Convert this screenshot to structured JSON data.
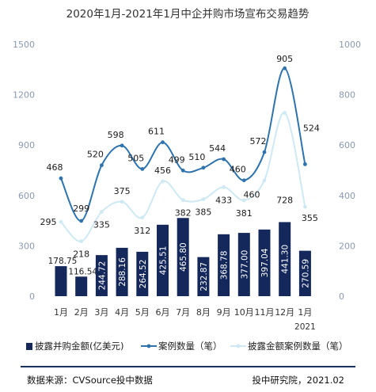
{
  "chart_data": {
    "type": "bar+line",
    "title": "2020年1月-2021年1月中企并购市场宣布交易趋势",
    "categories": [
      "1月",
      "2月",
      "3月",
      "4月",
      "5月",
      "6月",
      "7月",
      "8月",
      "9月",
      "10月",
      "11月",
      "12月",
      "1月"
    ],
    "x_sublabel": "2021",
    "ylim_left": [
      0,
      1500
    ],
    "yticks_left": [
      0,
      300,
      600,
      900,
      1200,
      1500
    ],
    "ylim_right": [
      0,
      1000
    ],
    "yticks_right": [
      0,
      200,
      400,
      600,
      800,
      1000
    ],
    "series": [
      {
        "name": "披露并购金额(亿美元)",
        "kind": "bar",
        "axis": "left",
        "color": "#14285c",
        "values": [
          178.75,
          116.54,
          244.72,
          288.16,
          264.52,
          425.51,
          465.8,
          232.87,
          368.78,
          377.0,
          397.04,
          441.3,
          270.59
        ]
      },
      {
        "name": "案例数量（笔）",
        "kind": "line",
        "axis": "right",
        "color": "#2e73ad",
        "values": [
          468,
          299,
          520,
          598,
          505,
          611,
          499,
          510,
          544,
          460,
          572,
          905,
          524
        ]
      },
      {
        "name": "披露金额案例数量（笔）",
        "kind": "line",
        "axis": "right",
        "color": "#cfe9f4",
        "values": [
          295,
          218,
          335,
          375,
          312,
          456,
          382,
          385,
          433,
          381,
          460,
          728,
          355
        ]
      }
    ],
    "legend_position": "bottom"
  },
  "footer": {
    "source": "数据来源：CVSource投中数据",
    "credit": "投中研究院，2021.02"
  }
}
